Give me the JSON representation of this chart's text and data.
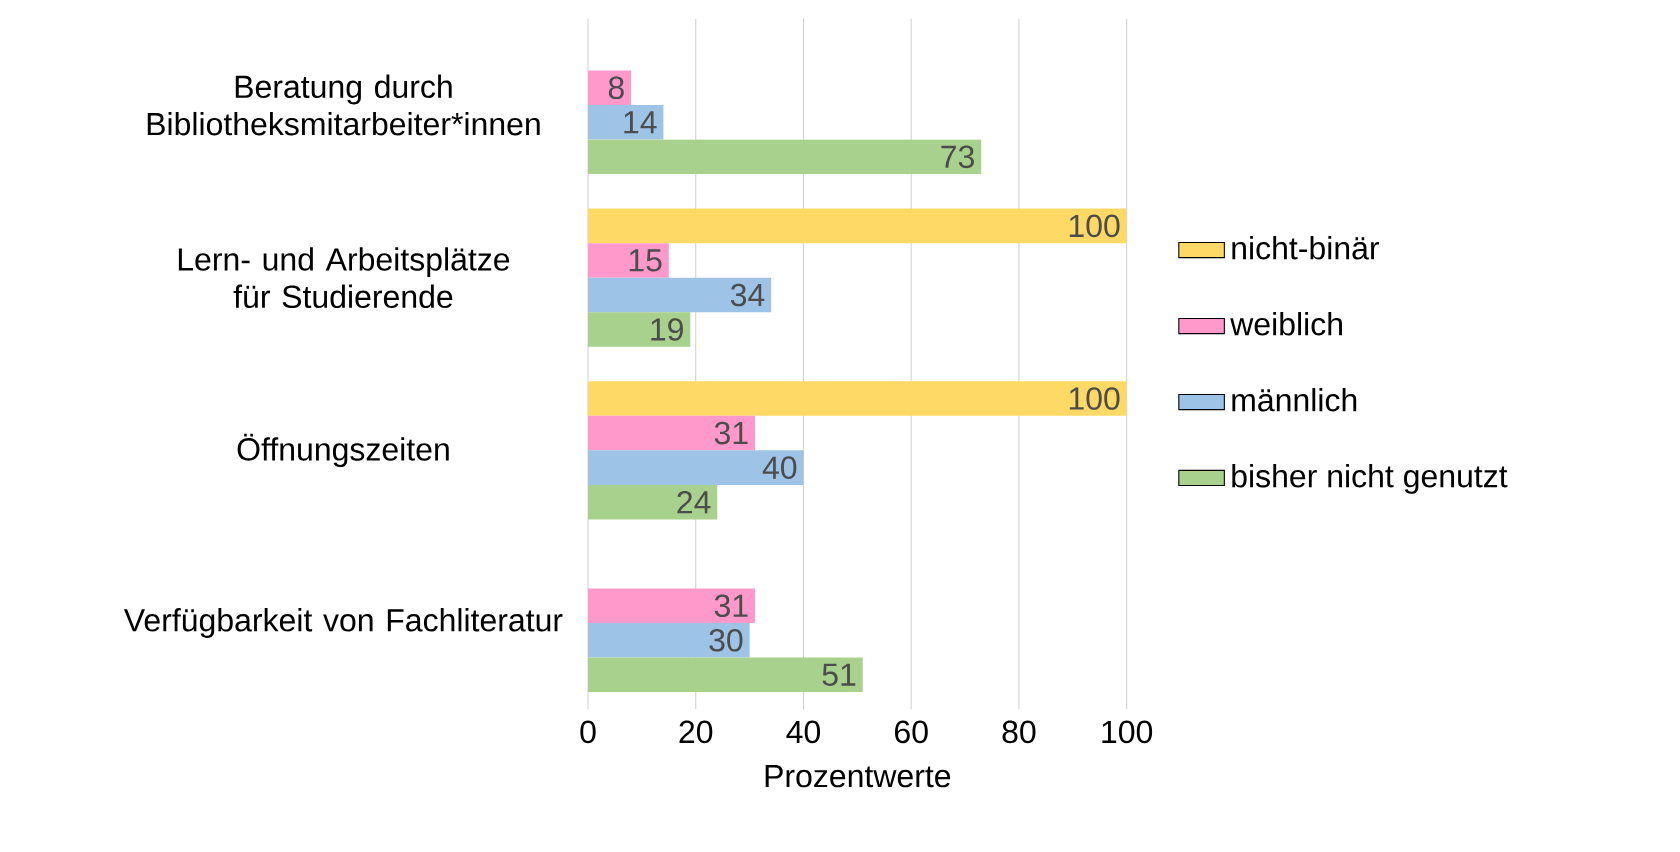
{
  "chart_data": {
    "type": "bar",
    "orientation": "horizontal",
    "xlabel": "Prozentwerte",
    "categories": [
      "Beratung durch Bibliotheksmitarbeiter*innen",
      "Lern- und Arbeitsplätze für Studierende",
      "Öffnungszeiten",
      "Verfügbarkeit von Fachliteratur"
    ],
    "series": [
      {
        "name": "nicht-binär",
        "color": "#ffd966",
        "values": [
          null,
          100,
          100,
          null
        ]
      },
      {
        "name": "weiblich",
        "color": "#ff99cc",
        "values": [
          8,
          15,
          31,
          31
        ]
      },
      {
        "name": "männlich",
        "color": "#9dc3e6",
        "values": [
          14,
          34,
          40,
          30
        ]
      },
      {
        "name": "bisher nicht genutzt",
        "color": "#a9d18e",
        "values": [
          73,
          19,
          24,
          51
        ]
      }
    ],
    "xlim": [
      0,
      100
    ],
    "xticks": [
      0,
      20,
      40,
      60,
      80,
      100
    ],
    "grid": "x",
    "legend": "right",
    "data_labels": true
  }
}
